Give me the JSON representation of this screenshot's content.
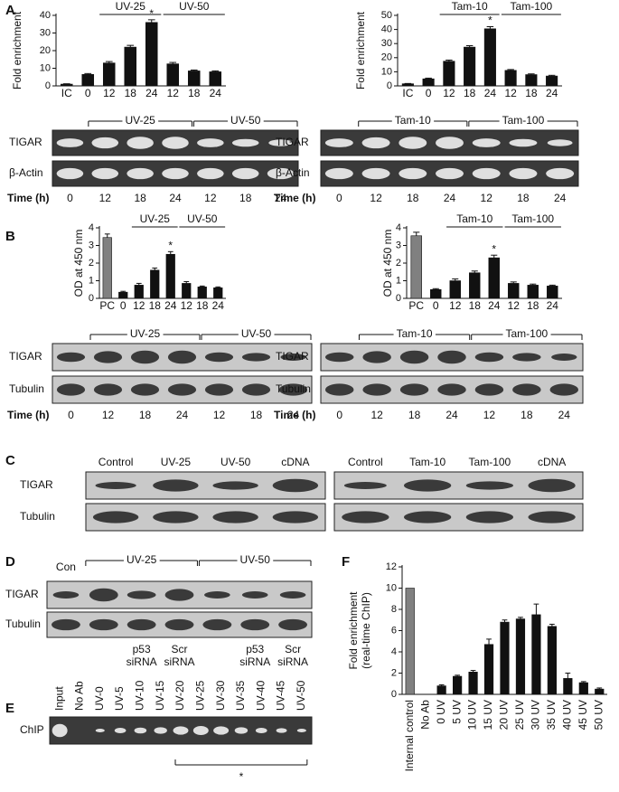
{
  "panel_labels": [
    "A",
    "B",
    "C",
    "D",
    "E",
    "F"
  ],
  "chart_data": [
    {
      "type": "bar",
      "y_label": [
        "Fold enrichment"
      ],
      "categories": [
        "IC",
        "0",
        "12",
        "18",
        "24",
        "12",
        "18",
        "24"
      ],
      "values": [
        1,
        6.5,
        13,
        22,
        36,
        12.5,
        8.5,
        8
      ],
      "errors": [
        0.2,
        0.5,
        0.8,
        1,
        1.5,
        0.8,
        0.5,
        0.5
      ],
      "color": "#111111",
      "first_color": "#111111",
      "ylim": [
        0,
        40
      ],
      "yticks": [
        0,
        10,
        20,
        30,
        40
      ],
      "groups": [
        "UV-25",
        "UV-50"
      ],
      "annotation": "*"
    },
    {
      "type": "bar",
      "y_label": [
        "Fold enrichment"
      ],
      "categories": [
        "IC",
        "0",
        "12",
        "18",
        "24",
        "12",
        "18",
        "24"
      ],
      "values": [
        1.5,
        5,
        17.5,
        27.5,
        40.5,
        11,
        8,
        7
      ],
      "errors": [
        0.2,
        0.5,
        0.8,
        1,
        1.5,
        0.6,
        0.5,
        0.5
      ],
      "color": "#111111",
      "first_color": "#111111",
      "ylim": [
        0,
        50
      ],
      "yticks": [
        0,
        10,
        20,
        30,
        40,
        50
      ],
      "groups": [
        "Tam-10",
        "Tam-100"
      ],
      "annotation": "*"
    },
    {
      "type": "bar",
      "y_label": [
        "OD at 450 nm"
      ],
      "categories": [
        "PC",
        "0",
        "12",
        "18",
        "24",
        "12",
        "18",
        "24"
      ],
      "values": [
        3.45,
        0.35,
        0.75,
        1.6,
        2.5,
        0.85,
        0.65,
        0.6
      ],
      "errors": [
        0.2,
        0.05,
        0.1,
        0.12,
        0.15,
        0.1,
        0.05,
        0.05
      ],
      "color": "#111111",
      "first_color": "#808080",
      "ylim": [
        0,
        4
      ],
      "yticks": [
        0,
        1,
        2,
        3,
        4
      ],
      "groups": [
        "UV-25",
        "UV-50"
      ],
      "annotation": "*"
    },
    {
      "type": "bar",
      "y_label": [
        "OD at 450 nm"
      ],
      "categories": [
        "PC",
        "0",
        "12",
        "18",
        "24",
        "12",
        "18",
        "24"
      ],
      "values": [
        3.55,
        0.5,
        1.0,
        1.45,
        2.3,
        0.85,
        0.75,
        0.7
      ],
      "errors": [
        0.2,
        0.05,
        0.1,
        0.1,
        0.15,
        0.08,
        0.06,
        0.05
      ],
      "color": "#111111",
      "first_color": "#808080",
      "ylim": [
        0,
        4
      ],
      "yticks": [
        0,
        1,
        2,
        3,
        4
      ],
      "groups": [
        "Tam-10",
        "Tam-100"
      ],
      "annotation": "*"
    },
    {
      "type": "bar",
      "y_label": [
        "Fold enrichment",
        "(real-time ChIP)"
      ],
      "categories": [
        "Internal control",
        "No Ab",
        "0 UV",
        "5 UV",
        "10 UV",
        "15 UV",
        "20 UV",
        "25 UV",
        "30 UV",
        "35 UV",
        "40 UV",
        "45 UV",
        "50 UV"
      ],
      "values": [
        10,
        0,
        0.8,
        1.7,
        2.1,
        4.7,
        6.8,
        7.1,
        7.5,
        6.4,
        1.5,
        1.1,
        0.5
      ],
      "errors": [
        0,
        0,
        0.1,
        0.1,
        0.15,
        0.5,
        0.2,
        0.15,
        1,
        0.2,
        0.5,
        0.1,
        0.1
      ],
      "color": "#111111",
      "first_color": "#808080",
      "ylim": [
        0,
        12
      ],
      "yticks": [
        0,
        2,
        4,
        6,
        8,
        10,
        12
      ]
    }
  ],
  "gels": {
    "a_left": {
      "groups": [
        "UV-25",
        "UV-50"
      ],
      "rows": [
        "TIGAR",
        "β-Actin"
      ],
      "time_label": "Time (h)",
      "times": [
        0,
        12,
        18,
        24,
        12,
        18,
        24
      ]
    },
    "a_right": {
      "groups": [
        "Tam-10",
        "Tam-100"
      ],
      "rows": [
        "TIGAR",
        "β-Actin"
      ],
      "time_label": "Time (h)",
      "times": [
        0,
        12,
        18,
        24,
        12,
        18,
        24
      ]
    },
    "b_left": {
      "groups": [
        "UV-25",
        "UV-50"
      ],
      "rows": [
        "TIGAR",
        "Tubulin"
      ],
      "time_label": "Time (h)",
      "times": [
        0,
        12,
        18,
        24,
        12,
        18,
        24
      ]
    },
    "b_right": {
      "groups": [
        "Tam-10",
        "Tam-100"
      ],
      "rows": [
        "TIGAR",
        "Tubulin"
      ],
      "time_label": "Time (h)",
      "times": [
        0,
        12,
        18,
        24,
        12,
        18,
        24
      ]
    },
    "c": {
      "rows": [
        "TIGAR",
        "Tubulin"
      ],
      "left_lanes": [
        "Control",
        "UV-25",
        "UV-50",
        "cDNA"
      ],
      "right_lanes": [
        "Control",
        "Tam-10",
        "Tam-100",
        "cDNA"
      ]
    },
    "d": {
      "first_lane": "Con",
      "groups": [
        "UV-25",
        "UV-50"
      ],
      "rows": [
        "TIGAR",
        "Tubulin"
      ],
      "bottom": [
        [
          "p53",
          "siRNA"
        ],
        [
          "Scr",
          "siRNA"
        ],
        [
          "p53",
          "siRNA"
        ],
        [
          "Scr",
          "siRNA"
        ]
      ]
    },
    "e": {
      "lanes": [
        "Input",
        "No Ab",
        "UV-0",
        "UV-5",
        "UV-10",
        "UV-15",
        "UV-20",
        "UV-25",
        "UV-30",
        "UV-35",
        "UV-40",
        "UV-45",
        "UV-50"
      ],
      "row": "ChIP",
      "annotation": "*"
    }
  }
}
